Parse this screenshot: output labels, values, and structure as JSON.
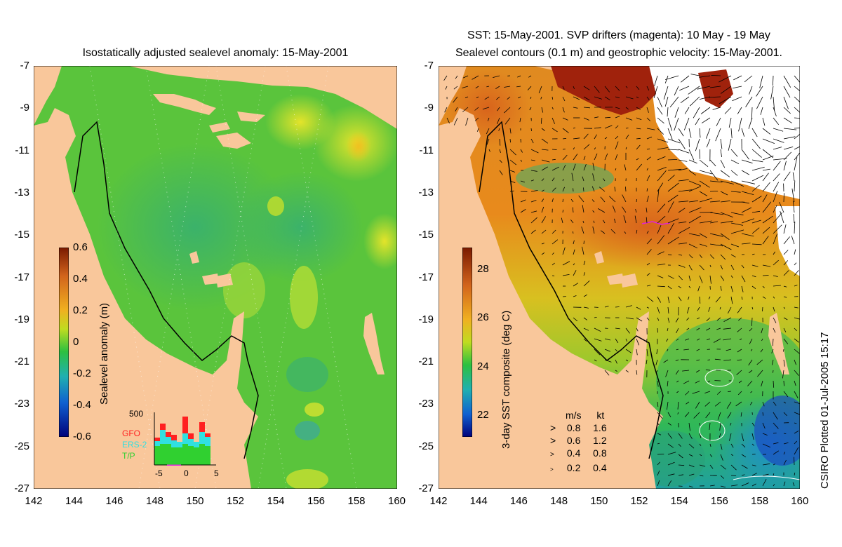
{
  "left_panel": {
    "title": "Isostatically adjusted sealevel anomaly: 15-May-2001",
    "colorbar": {
      "label": "Sealevel anomaly (m)",
      "ticks": [
        "0.6",
        "0.4",
        "0.2",
        "0",
        "-0.2",
        "-0.4",
        "-0.6"
      ]
    },
    "histogram": {
      "ymax_label": "500",
      "x_ticks": [
        "-5",
        "0",
        "5"
      ],
      "legend": [
        {
          "name": "GFO",
          "color": "#ff2020"
        },
        {
          "name": "ERS-2",
          "color": "#30e0e0"
        },
        {
          "name": "T/P",
          "color": "#30d030"
        }
      ]
    }
  },
  "right_panel": {
    "title_line1": "SST: 15-May-2001. SVP drifters (magenta): 10 May - 19 May",
    "title_line2": "Sealevel contours (0.1 m) and geostrophic velocity: 15-May-2001.",
    "colorbar": {
      "label": "3-day SST composite (deg C)",
      "ticks": [
        "28",
        "26",
        "24",
        "22"
      ]
    },
    "vector_legend": {
      "header_ms": "m/s",
      "header_kt": "kt",
      "rows": [
        {
          "ms": "0.8",
          "kt": "1.6"
        },
        {
          "ms": "0.6",
          "kt": "1.2"
        },
        {
          "ms": "0.4",
          "kt": "0.8"
        },
        {
          "ms": "0.2",
          "kt": "0.4"
        }
      ]
    }
  },
  "axes": {
    "lat_ticks": [
      "-7",
      "-9",
      "-11",
      "-13",
      "-15",
      "-17",
      "-19",
      "-21",
      "-23",
      "-25",
      "-27"
    ],
    "lon_ticks": [
      "142",
      "144",
      "146",
      "148",
      "150",
      "152",
      "154",
      "156",
      "158",
      "160"
    ]
  },
  "footer": {
    "credit": "CSIRO Plotted 01-Jul-2005 15:17"
  },
  "colors": {
    "land": "#f9c79b",
    "sla_sea": "#5cc83c",
    "sst_sea": "#e88a1c",
    "cloud": "#ffffff"
  }
}
